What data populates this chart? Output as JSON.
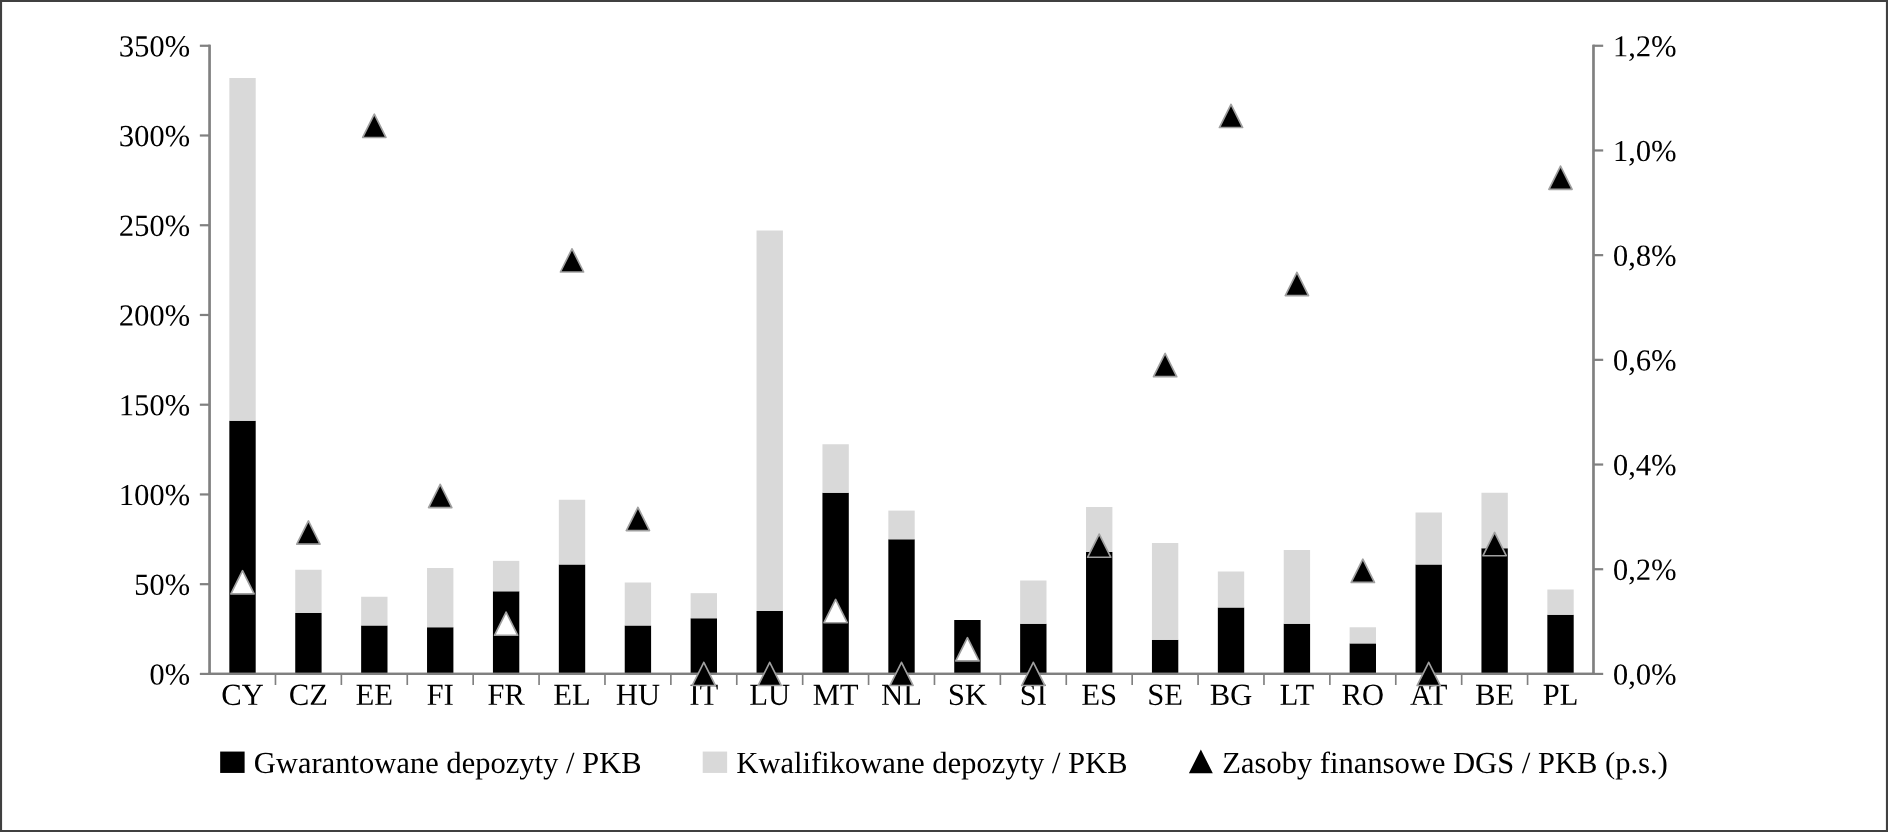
{
  "chart_data": {
    "type": "bar",
    "stacked": true,
    "categories": [
      "CY",
      "CZ",
      "EE",
      "FI",
      "FR",
      "EL",
      "HU",
      "IT",
      "LU",
      "MT",
      "NL",
      "SK",
      "SI",
      "ES",
      "SE",
      "BG",
      "LT",
      "RO",
      "AT",
      "BE",
      "PL"
    ],
    "series": [
      {
        "name": "Gwarantowane depozyty / PKB",
        "color": "#000000",
        "values": [
          141,
          34,
          27,
          26,
          46,
          61,
          27,
          31,
          35,
          101,
          75,
          30,
          28,
          68,
          19,
          37,
          28,
          17,
          61,
          70,
          33
        ]
      },
      {
        "name": "Kwalifikowane depozyty / PKB",
        "color": "#d9d9d9",
        "values": [
          191,
          24,
          16,
          33,
          17,
          36,
          24,
          14,
          212,
          27,
          16,
          0,
          24,
          25,
          54,
          20,
          41,
          9,
          29,
          31,
          14
        ]
      },
      {
        "name": "Zasoby finansowe DGS / PKB (p.s.)",
        "type": "scatter",
        "axis": "y2",
        "marker": "triangle",
        "color": "#000000",
        "colors": [
          "#ffffff",
          "#000000",
          "#000000",
          "#000000",
          "#ffffff",
          "#000000",
          "#000000",
          "#000000",
          "#000000",
          "#ffffff",
          "#000000",
          "#ffffff",
          "#000000",
          "#000000",
          "#000000",
          "#000000",
          "#000000",
          "#000000",
          "#000000",
          "#000000",
          "#000000"
        ],
        "values": [
          0.175,
          0.27,
          1.047,
          0.34,
          0.096,
          0.79,
          0.296,
          0,
          0,
          0.12,
          0,
          0.047,
          0,
          0.245,
          0.59,
          1.066,
          0.745,
          0.197,
          0,
          0.248,
          0.948
        ]
      }
    ],
    "ylim": [
      0,
      350
    ],
    "yticks": [
      {
        "value": 0,
        "label": "0%"
      },
      {
        "value": 50,
        "label": "50%"
      },
      {
        "value": 100,
        "label": "100%"
      },
      {
        "value": 150,
        "label": "150%"
      },
      {
        "value": 200,
        "label": "200%"
      },
      {
        "value": 250,
        "label": "250%"
      },
      {
        "value": 300,
        "label": "300%"
      },
      {
        "value": 350,
        "label": "350%"
      }
    ],
    "y2lim": [
      0,
      1.2
    ],
    "y2ticks": [
      {
        "value": 0,
        "label": "0,0%"
      },
      {
        "value": 0.2,
        "label": "0,2%"
      },
      {
        "value": 0.4,
        "label": "0,4%"
      },
      {
        "value": 0.6,
        "label": "0,6%"
      },
      {
        "value": 0.8,
        "label": "0,8%"
      },
      {
        "value": 1.0,
        "label": "1,0%"
      },
      {
        "value": 1.2,
        "label": "1,2%"
      }
    ],
    "grid": false,
    "legend": "bottom"
  }
}
